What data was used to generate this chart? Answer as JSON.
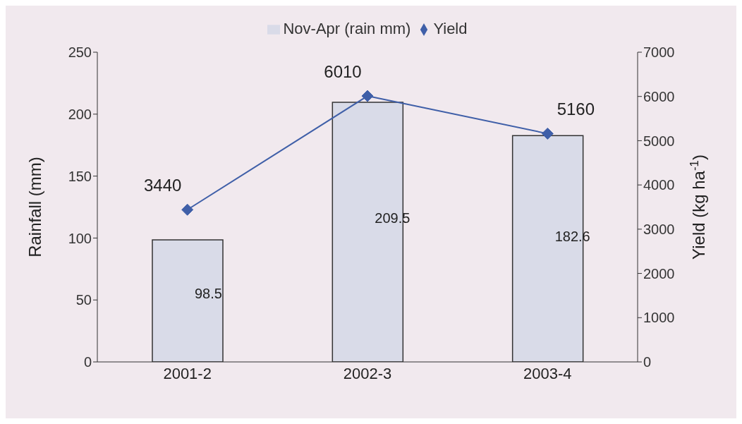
{
  "chart_data": {
    "type": "bar",
    "categories": [
      "2001-2",
      "2002-3",
      "2003-4"
    ],
    "series": [
      {
        "name": "Nov-Apr (rain mm)",
        "color": "#d9dbe8",
        "values": [
          98.5,
          209.5,
          182.6
        ]
      },
      {
        "name": "Yield",
        "type": "line",
        "axis": "y2",
        "color": "#3f5fa8",
        "values": [
          3440,
          6010,
          5160
        ]
      }
    ],
    "ylabel": "Rainfall (mm)",
    "y2label": "Yield (kg ha$^{-1}$)",
    "ylim": [
      0,
      250
    ],
    "yticks": [
      0,
      50,
      100,
      150,
      200,
      250
    ],
    "y2lim": [
      0,
      7000
    ],
    "y2ticks": [
      0,
      1000,
      2000,
      3000,
      4000,
      5000,
      6000,
      7000
    ],
    "marker": "diamond",
    "legend": "top",
    "grid": false,
    "data_labels": true
  }
}
